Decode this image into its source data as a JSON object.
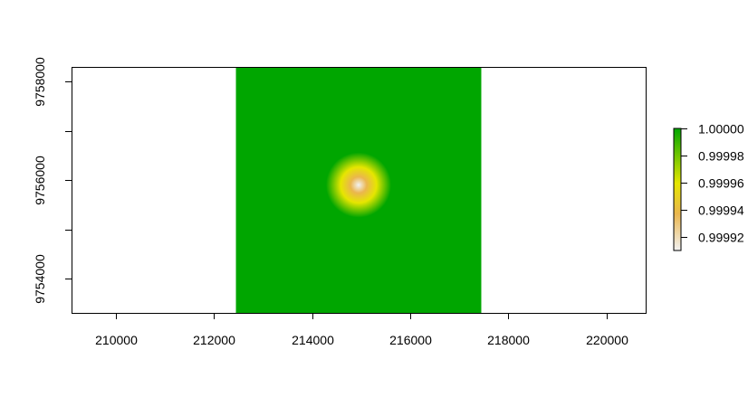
{
  "chart_data": {
    "type": "heatmap",
    "title": "",
    "xlabel": "",
    "ylabel": "",
    "xlim": [
      209100,
      220800
    ],
    "ylim": [
      9753300,
      9758300
    ],
    "x_ticks": [
      {
        "value": 210000,
        "label": "210000"
      },
      {
        "value": 212000,
        "label": "212000"
      },
      {
        "value": 214000,
        "label": "214000"
      },
      {
        "value": 216000,
        "label": "216000"
      },
      {
        "value": 218000,
        "label": "218000"
      },
      {
        "value": 220000,
        "label": "220000"
      }
    ],
    "y_ticks": [
      {
        "value": 9754000,
        "label": "9754000",
        "labeled": true
      },
      {
        "value": 9755000,
        "label": "",
        "labeled": false
      },
      {
        "value": 9756000,
        "label": "9756000",
        "labeled": true
      },
      {
        "value": 9757000,
        "label": "",
        "labeled": false
      },
      {
        "value": 9758000,
        "label": "9758000",
        "labeled": true
      }
    ],
    "raster_extent": {
      "xmin": 212450,
      "xmax": 217450,
      "ymin": 9753300,
      "ymax": 9758300
    },
    "hotspot": {
      "x": 214950,
      "y": 9755900,
      "min_value": 0.99991
    },
    "value_range": [
      0.99991,
      1.0
    ],
    "colors": {
      "high": "#00A600",
      "mid_yellow": "#E6E600",
      "mid_orange": "#EAB64E",
      "low": "#F2F2F2"
    },
    "legend": {
      "position": "right",
      "ticks": [
        {
          "value": 1.0,
          "label": "1.00000"
        },
        {
          "value": 0.99998,
          "label": "0.99998"
        },
        {
          "value": 0.99996,
          "label": "0.99996"
        },
        {
          "value": 0.99994,
          "label": "0.99994"
        },
        {
          "value": 0.99992,
          "label": "0.99992"
        }
      ]
    }
  }
}
